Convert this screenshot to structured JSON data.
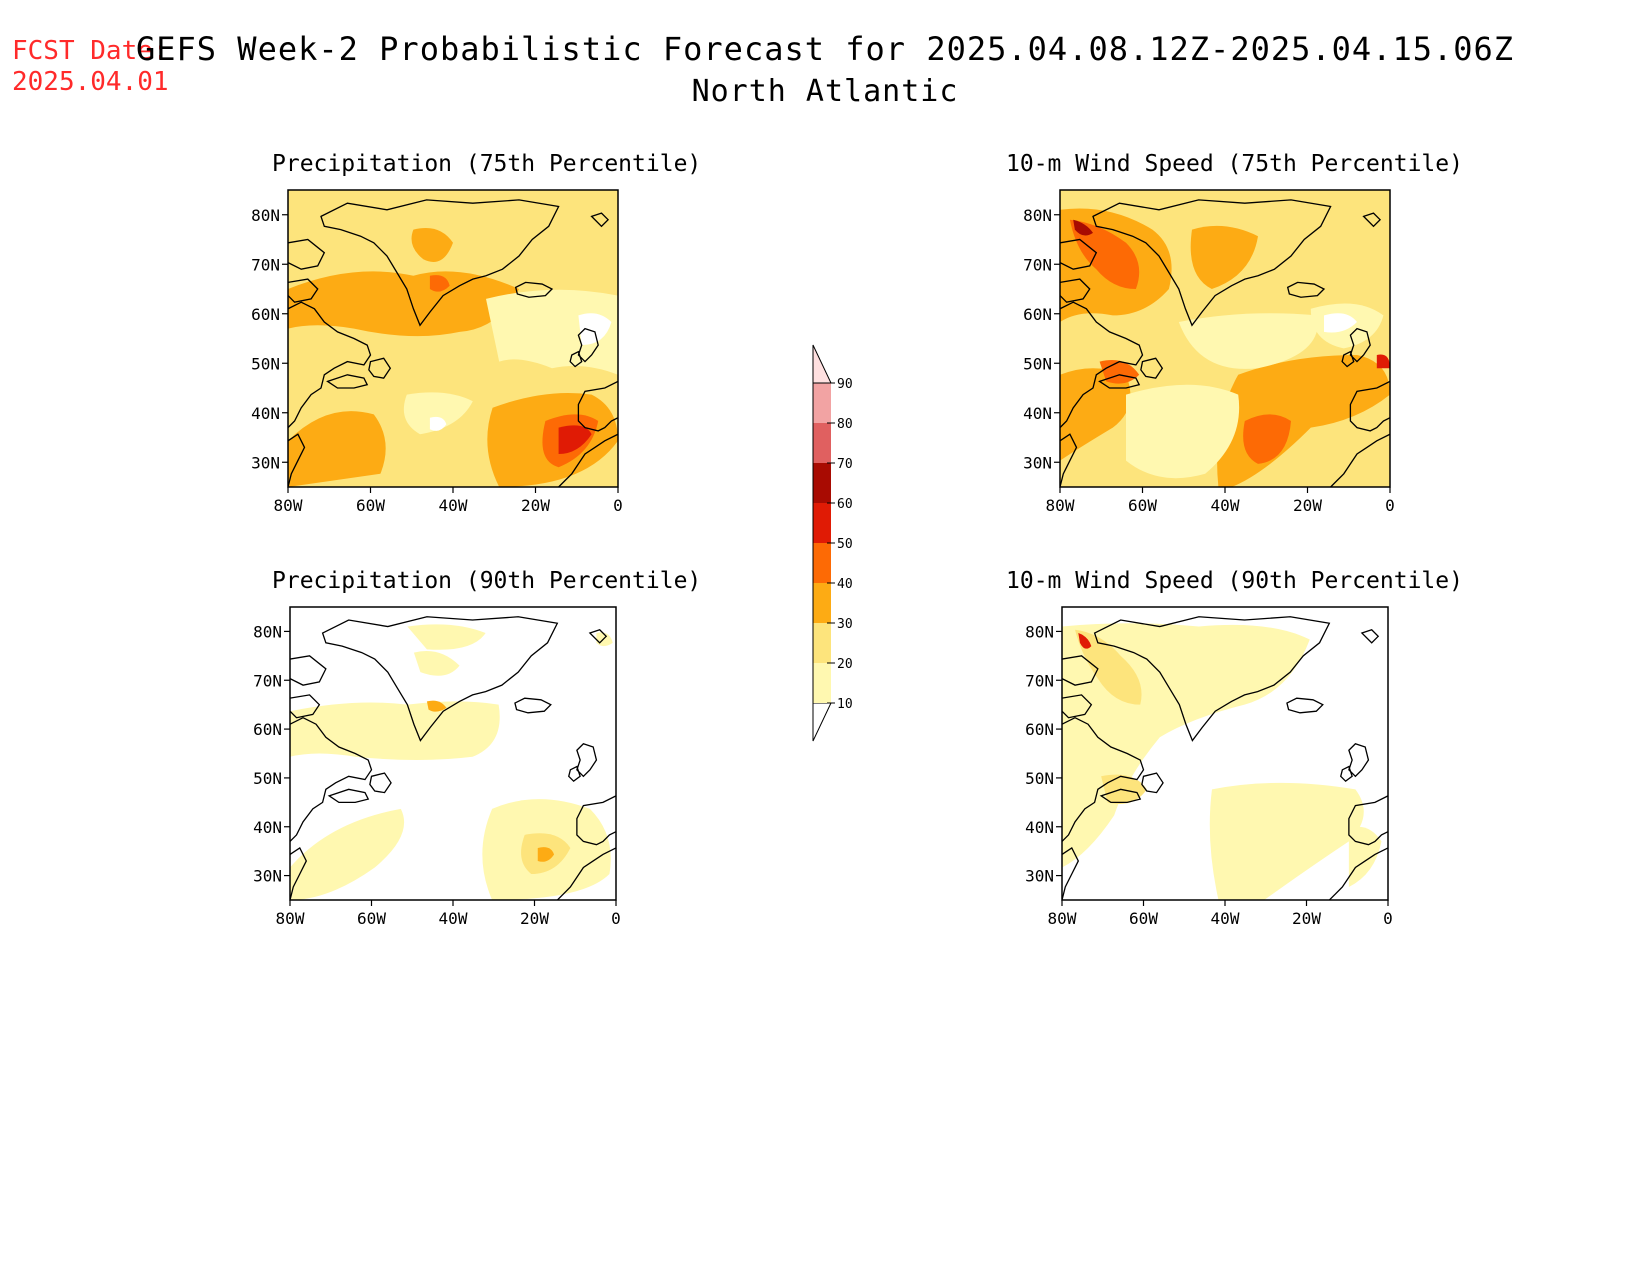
{
  "header": {
    "fcst_label": "FCST Date:",
    "fcst_date": "2025.04.01",
    "title": "GEFS Week-2 Probabilistic Forecast for 2025.04.08.12Z-2025.04.15.06Z",
    "region": "North Atlantic"
  },
  "panels": [
    {
      "title": "Precipitation (75th Percentile)"
    },
    {
      "title": "10-m Wind Speed (75th Percentile)"
    },
    {
      "title": "Precipitation (90th Percentile)"
    },
    {
      "title": "10-m Wind Speed (90th Percentile)"
    }
  ],
  "axes": {
    "lat_labels": [
      "80N",
      "70N",
      "60N",
      "50N",
      "40N",
      "30N"
    ],
    "lat_values": [
      80,
      70,
      60,
      50,
      40,
      30
    ],
    "lon_labels": [
      "80W",
      "60W",
      "40W",
      "20W",
      "0"
    ],
    "lon_values": [
      -80,
      -60,
      -40,
      -20,
      0
    ],
    "lat_range": [
      25,
      85
    ],
    "lon_range": [
      -80,
      0
    ]
  },
  "colorbar": {
    "levels": [
      "10",
      "20",
      "30",
      "40",
      "50",
      "60",
      "70",
      "80",
      "90"
    ],
    "colors": [
      "#fff8b0",
      "#fde47c",
      "#fdab14",
      "#fd6a05",
      "#e01b05",
      "#a80b02",
      "#e06060",
      "#f2a3a3",
      "#ffe0e0"
    ]
  },
  "colors": {
    "title": "#000000",
    "fcst_date": "#ff2a2a",
    "coast": "#000000"
  }
}
